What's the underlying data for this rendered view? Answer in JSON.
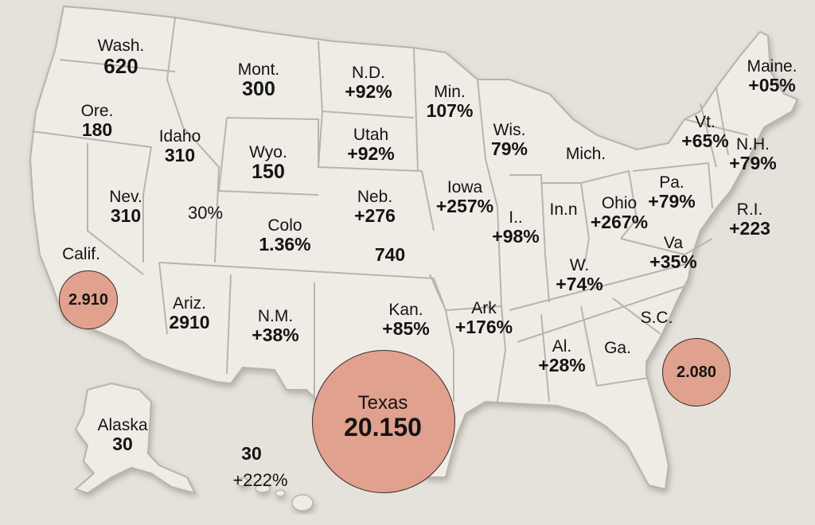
{
  "colors": {
    "background": "#e5e2dc",
    "land": "#efece6",
    "border": "#b9b4ab",
    "bubble": "#e0a18e",
    "bubble_stroke": "#3a2a24",
    "text": "#141414"
  },
  "labels": [
    {
      "id": "wash",
      "name": "Wash.",
      "value": "620"
    },
    {
      "id": "ore",
      "name": "Ore.",
      "value": "180"
    },
    {
      "id": "mont",
      "name": "Mont.",
      "value": "300"
    },
    {
      "id": "nd",
      "name": "N.D.",
      "value": "+92%"
    },
    {
      "id": "min",
      "name": "Min.",
      "value": "107%"
    },
    {
      "id": "maine",
      "name": "Maine.",
      "value": "+05%"
    },
    {
      "id": "idaho",
      "name": "Idaho",
      "value": "310"
    },
    {
      "id": "wyo",
      "name": "Wyo.",
      "value": "150"
    },
    {
      "id": "utah",
      "name": "Utah",
      "value": "+92%"
    },
    {
      "id": "wis",
      "name": "Wis.",
      "value": "79%"
    },
    {
      "id": "mich",
      "name": "Mich.",
      "value": ""
    },
    {
      "id": "vt",
      "name": "Vt.",
      "value": "+65%"
    },
    {
      "id": "nh",
      "name": "N.H.",
      "value": "+79%"
    },
    {
      "id": "nev",
      "name": "Nev.",
      "value": "310"
    },
    {
      "id": "pct30",
      "name": "",
      "value": "30%"
    },
    {
      "id": "colo",
      "name": "Colo",
      "value": "1.36%"
    },
    {
      "id": "neb",
      "name": "Neb.",
      "value": "+276"
    },
    {
      "id": "v740",
      "name": "",
      "value": "740"
    },
    {
      "id": "iowa",
      "name": "Iowa",
      "value": "+257%"
    },
    {
      "id": "ill",
      "name": "I..",
      "value": "+98%"
    },
    {
      "id": "inn",
      "name": "In.n",
      "value": ""
    },
    {
      "id": "ohio",
      "name": "Ohio",
      "value": "+267%"
    },
    {
      "id": "pa",
      "name": "Pa.",
      "value": "+79%"
    },
    {
      "id": "ri",
      "name": "R.I.",
      "value": "+223"
    },
    {
      "id": "calif",
      "name": "Calif.",
      "value": ""
    },
    {
      "id": "va",
      "name": "Va",
      "value": "+35%"
    },
    {
      "id": "w",
      "name": "W.",
      "value": "+74%"
    },
    {
      "id": "ariz",
      "name": "Ariz.",
      "value": "2910"
    },
    {
      "id": "nm",
      "name": "N.M.",
      "value": "+38%"
    },
    {
      "id": "kan",
      "name": "Kan.",
      "value": "+85%"
    },
    {
      "id": "ark",
      "name": "Ark",
      "value": "+176%"
    },
    {
      "id": "sc",
      "name": "S.C.",
      "value": ""
    },
    {
      "id": "al",
      "name": "Al.",
      "value": "+28%"
    },
    {
      "id": "ga",
      "name": "Ga.",
      "value": ""
    },
    {
      "id": "alaska",
      "name": "Alaska",
      "value": "30"
    },
    {
      "id": "hawaii",
      "name": "",
      "value": "30"
    },
    {
      "id": "hawaii_pct",
      "name": "",
      "value": "+222%"
    },
    {
      "id": "texas",
      "name": "Texas",
      "value": "20.150"
    }
  ],
  "bubbles": [
    {
      "id": "calif",
      "label": "2.910"
    },
    {
      "id": "texas",
      "label": ""
    },
    {
      "id": "fla",
      "label": "2.080"
    }
  ]
}
